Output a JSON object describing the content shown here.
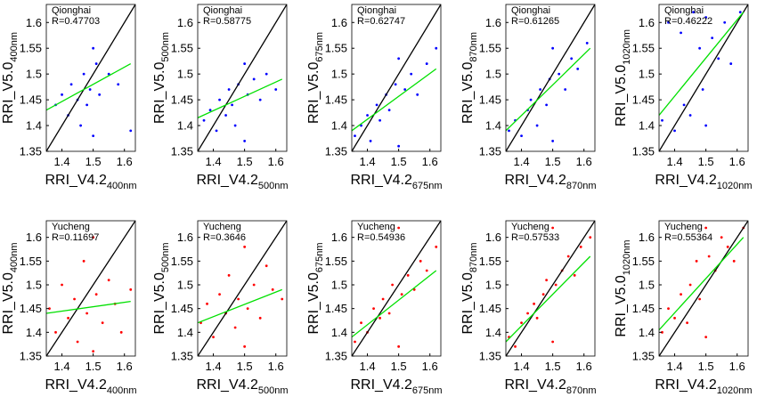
{
  "chart_data": [
    {
      "type": "scatter",
      "station": "Qionghai",
      "r_label": "R=0.47703",
      "xlabel": "RRI_V4.2",
      "xlabel_sub": "400nm",
      "ylabel": "RRI_V5.0",
      "ylabel_sub": "400nm",
      "xlim": [
        1.35,
        1.635
      ],
      "ylim": [
        1.35,
        1.635
      ],
      "xticks": [
        1.4,
        1.5,
        1.6
      ],
      "yticks": [
        1.35,
        1.4,
        1.45,
        1.5,
        1.55,
        1.6
      ],
      "series": [
        {
          "type": "scatter",
          "color": "#0000ff",
          "x": [
            1.38,
            1.4,
            1.42,
            1.43,
            1.45,
            1.46,
            1.47,
            1.48,
            1.49,
            1.5,
            1.5,
            1.51,
            1.52,
            1.55,
            1.58,
            1.62
          ],
          "values": [
            1.44,
            1.46,
            1.42,
            1.48,
            1.45,
            1.4,
            1.5,
            1.44,
            1.47,
            1.55,
            1.38,
            1.52,
            1.46,
            1.5,
            1.48,
            1.39
          ]
        },
        {
          "type": "line",
          "color": "#000000",
          "x": [
            1.35,
            1.635
          ],
          "values": [
            1.35,
            1.635
          ]
        },
        {
          "type": "line",
          "color": "#00e000",
          "x": [
            1.35,
            1.62
          ],
          "values": [
            1.43,
            1.52
          ]
        }
      ]
    },
    {
      "type": "scatter",
      "station": "Qionghai",
      "r_label": "R=0.58775",
      "xlabel": "RRI_V4.2",
      "xlabel_sub": "500nm",
      "ylabel": "RRI_V5.0",
      "ylabel_sub": "500nm",
      "xlim": [
        1.35,
        1.635
      ],
      "ylim": [
        1.35,
        1.635
      ],
      "xticks": [
        1.4,
        1.5,
        1.6
      ],
      "yticks": [
        1.35,
        1.4,
        1.45,
        1.5,
        1.55,
        1.6
      ],
      "series": [
        {
          "type": "scatter",
          "color": "#0000ff",
          "x": [
            1.37,
            1.39,
            1.41,
            1.42,
            1.44,
            1.45,
            1.46,
            1.47,
            1.48,
            1.5,
            1.5,
            1.51,
            1.53,
            1.55,
            1.57,
            1.6
          ],
          "values": [
            1.41,
            1.43,
            1.39,
            1.45,
            1.42,
            1.47,
            1.44,
            1.4,
            1.48,
            1.52,
            1.37,
            1.46,
            1.49,
            1.45,
            1.5,
            1.47
          ]
        },
        {
          "type": "line",
          "color": "#000000",
          "x": [
            1.35,
            1.635
          ],
          "values": [
            1.35,
            1.635
          ]
        },
        {
          "type": "line",
          "color": "#00e000",
          "x": [
            1.35,
            1.62
          ],
          "values": [
            1.415,
            1.49
          ]
        }
      ]
    },
    {
      "type": "scatter",
      "station": "Qionghai",
      "r_label": "R=0.62747",
      "xlabel": "RRI_V4.2",
      "xlabel_sub": "675nm",
      "ylabel": "RRI_V5.0",
      "ylabel_sub": "675nm",
      "xlim": [
        1.35,
        1.635
      ],
      "ylim": [
        1.35,
        1.635
      ],
      "xticks": [
        1.4,
        1.5,
        1.6
      ],
      "yticks": [
        1.35,
        1.4,
        1.45,
        1.5,
        1.55,
        1.6
      ],
      "series": [
        {
          "type": "scatter",
          "color": "#0000ff",
          "x": [
            1.36,
            1.38,
            1.4,
            1.41,
            1.43,
            1.44,
            1.46,
            1.47,
            1.49,
            1.5,
            1.5,
            1.52,
            1.54,
            1.56,
            1.59,
            1.62
          ],
          "values": [
            1.38,
            1.4,
            1.42,
            1.37,
            1.44,
            1.41,
            1.46,
            1.43,
            1.48,
            1.53,
            1.36,
            1.47,
            1.5,
            1.46,
            1.52,
            1.55
          ]
        },
        {
          "type": "line",
          "color": "#000000",
          "x": [
            1.35,
            1.635
          ],
          "values": [
            1.35,
            1.635
          ]
        },
        {
          "type": "line",
          "color": "#00e000",
          "x": [
            1.35,
            1.62
          ],
          "values": [
            1.39,
            1.51
          ]
        }
      ]
    },
    {
      "type": "scatter",
      "station": "Qionghai",
      "r_label": "R=0.61265",
      "xlabel": "RRI_V4.2",
      "xlabel_sub": "870nm",
      "ylabel": "RRI_V5.0",
      "ylabel_sub": "870nm",
      "xlim": [
        1.35,
        1.635
      ],
      "ylim": [
        1.35,
        1.635
      ],
      "xticks": [
        1.4,
        1.5,
        1.6
      ],
      "yticks": [
        1.35,
        1.4,
        1.45,
        1.5,
        1.55,
        1.6
      ],
      "series": [
        {
          "type": "scatter",
          "color": "#0000ff",
          "x": [
            1.36,
            1.38,
            1.4,
            1.42,
            1.43,
            1.45,
            1.46,
            1.48,
            1.49,
            1.5,
            1.5,
            1.52,
            1.54,
            1.56,
            1.58,
            1.61
          ],
          "values": [
            1.39,
            1.41,
            1.38,
            1.43,
            1.45,
            1.4,
            1.47,
            1.44,
            1.49,
            1.55,
            1.37,
            1.5,
            1.47,
            1.53,
            1.51,
            1.56
          ]
        },
        {
          "type": "line",
          "color": "#000000",
          "x": [
            1.35,
            1.635
          ],
          "values": [
            1.35,
            1.635
          ]
        },
        {
          "type": "line",
          "color": "#00e000",
          "x": [
            1.35,
            1.62
          ],
          "values": [
            1.39,
            1.55
          ]
        }
      ]
    },
    {
      "type": "scatter",
      "station": "Qionghai",
      "r_label": "R=0.46222",
      "xlabel": "RRI_V4.2",
      "xlabel_sub": "1020nm",
      "ylabel": "RRI_V5.0",
      "ylabel_sub": "1020nm",
      "xlim": [
        1.35,
        1.635
      ],
      "ylim": [
        1.35,
        1.635
      ],
      "xticks": [
        1.4,
        1.5,
        1.6
      ],
      "yticks": [
        1.35,
        1.4,
        1.45,
        1.5,
        1.55,
        1.6
      ],
      "series": [
        {
          "type": "scatter",
          "color": "#0000ff",
          "x": [
            1.36,
            1.38,
            1.4,
            1.42,
            1.43,
            1.45,
            1.46,
            1.48,
            1.49,
            1.5,
            1.5,
            1.52,
            1.54,
            1.56,
            1.58,
            1.61
          ],
          "values": [
            1.41,
            1.6,
            1.39,
            1.58,
            1.44,
            1.42,
            1.62,
            1.55,
            1.47,
            1.61,
            1.4,
            1.57,
            1.53,
            1.6,
            1.52,
            1.62
          ]
        },
        {
          "type": "line",
          "color": "#000000",
          "x": [
            1.35,
            1.635
          ],
          "values": [
            1.35,
            1.635
          ]
        },
        {
          "type": "line",
          "color": "#00e000",
          "x": [
            1.35,
            1.62
          ],
          "values": [
            1.42,
            1.62
          ]
        }
      ]
    },
    {
      "type": "scatter",
      "station": "Yucheng",
      "r_label": "R=0.11697",
      "xlabel": "RRI_V4.2",
      "xlabel_sub": "400nm",
      "ylabel": "RRI_V5.0",
      "ylabel_sub": "400nm",
      "xlim": [
        1.35,
        1.635
      ],
      "ylim": [
        1.35,
        1.635
      ],
      "xticks": [
        1.4,
        1.5,
        1.6
      ],
      "yticks": [
        1.35,
        1.4,
        1.45,
        1.5,
        1.55,
        1.6
      ],
      "series": [
        {
          "type": "scatter",
          "color": "#ff0000",
          "x": [
            1.36,
            1.38,
            1.4,
            1.42,
            1.44,
            1.45,
            1.47,
            1.48,
            1.5,
            1.5,
            1.51,
            1.53,
            1.55,
            1.57,
            1.59,
            1.62
          ],
          "values": [
            1.45,
            1.4,
            1.5,
            1.43,
            1.47,
            1.38,
            1.55,
            1.44,
            1.6,
            1.36,
            1.48,
            1.42,
            1.51,
            1.46,
            1.4,
            1.49
          ]
        },
        {
          "type": "line",
          "color": "#000000",
          "x": [
            1.35,
            1.635
          ],
          "values": [
            1.35,
            1.635
          ]
        },
        {
          "type": "line",
          "color": "#00e000",
          "x": [
            1.35,
            1.62
          ],
          "values": [
            1.44,
            1.465
          ]
        }
      ]
    },
    {
      "type": "scatter",
      "station": "Yucheng",
      "r_label": "R=0.3646",
      "xlabel": "RRI_V4.2",
      "xlabel_sub": "500nm",
      "ylabel": "RRI_V5.0",
      "ylabel_sub": "500nm",
      "xlim": [
        1.35,
        1.635
      ],
      "ylim": [
        1.35,
        1.635
      ],
      "xticks": [
        1.4,
        1.5,
        1.6
      ],
      "yticks": [
        1.35,
        1.4,
        1.45,
        1.5,
        1.55,
        1.6
      ],
      "series": [
        {
          "type": "scatter",
          "color": "#ff0000",
          "x": [
            1.36,
            1.38,
            1.4,
            1.42,
            1.44,
            1.45,
            1.47,
            1.48,
            1.5,
            1.5,
            1.51,
            1.53,
            1.55,
            1.57,
            1.59,
            1.62
          ],
          "values": [
            1.42,
            1.46,
            1.39,
            1.48,
            1.44,
            1.52,
            1.41,
            1.47,
            1.58,
            1.37,
            1.45,
            1.5,
            1.43,
            1.54,
            1.49,
            1.47
          ]
        },
        {
          "type": "line",
          "color": "#000000",
          "x": [
            1.35,
            1.635
          ],
          "values": [
            1.35,
            1.635
          ]
        },
        {
          "type": "line",
          "color": "#00e000",
          "x": [
            1.35,
            1.62
          ],
          "values": [
            1.42,
            1.49
          ]
        }
      ]
    },
    {
      "type": "scatter",
      "station": "Yucheng",
      "r_label": "R=0.54936",
      "xlabel": "RRI_V4.2",
      "xlabel_sub": "675nm",
      "ylabel": "RRI_V5.0",
      "ylabel_sub": "675nm",
      "xlim": [
        1.35,
        1.635
      ],
      "ylim": [
        1.35,
        1.635
      ],
      "xticks": [
        1.4,
        1.5,
        1.6
      ],
      "yticks": [
        1.35,
        1.4,
        1.45,
        1.5,
        1.55,
        1.6
      ],
      "series": [
        {
          "type": "scatter",
          "color": "#ff0000",
          "x": [
            1.36,
            1.38,
            1.4,
            1.42,
            1.44,
            1.45,
            1.47,
            1.48,
            1.5,
            1.5,
            1.51,
            1.53,
            1.55,
            1.57,
            1.59,
            1.62
          ],
          "values": [
            1.38,
            1.42,
            1.4,
            1.45,
            1.43,
            1.47,
            1.44,
            1.5,
            1.62,
            1.37,
            1.48,
            1.52,
            1.49,
            1.55,
            1.53,
            1.58
          ]
        },
        {
          "type": "line",
          "color": "#000000",
          "x": [
            1.35,
            1.635
          ],
          "values": [
            1.35,
            1.635
          ]
        },
        {
          "type": "line",
          "color": "#00e000",
          "x": [
            1.35,
            1.62
          ],
          "values": [
            1.39,
            1.53
          ]
        }
      ]
    },
    {
      "type": "scatter",
      "station": "Yucheng",
      "r_label": "R=0.57533",
      "xlabel": "RRI_V4.2",
      "xlabel_sub": "870nm",
      "ylabel": "RRI_V5.0",
      "ylabel_sub": "870nm",
      "xlim": [
        1.35,
        1.635
      ],
      "ylim": [
        1.35,
        1.635
      ],
      "xticks": [
        1.4,
        1.5,
        1.6
      ],
      "yticks": [
        1.35,
        1.4,
        1.45,
        1.5,
        1.55,
        1.6
      ],
      "series": [
        {
          "type": "scatter",
          "color": "#ff0000",
          "x": [
            1.36,
            1.38,
            1.4,
            1.42,
            1.44,
            1.45,
            1.47,
            1.48,
            1.5,
            1.5,
            1.51,
            1.53,
            1.55,
            1.57,
            1.59,
            1.62
          ],
          "values": [
            1.39,
            1.37,
            1.42,
            1.44,
            1.46,
            1.43,
            1.48,
            1.51,
            1.62,
            1.38,
            1.5,
            1.53,
            1.56,
            1.52,
            1.58,
            1.6
          ]
        },
        {
          "type": "line",
          "color": "#000000",
          "x": [
            1.35,
            1.635
          ],
          "values": [
            1.35,
            1.635
          ]
        },
        {
          "type": "line",
          "color": "#00e000",
          "x": [
            1.35,
            1.62
          ],
          "values": [
            1.38,
            1.56
          ]
        }
      ]
    },
    {
      "type": "scatter",
      "station": "Yucheng",
      "r_label": "R=0.55364",
      "xlabel": "RRI_V4.2",
      "xlabel_sub": "1020nm",
      "ylabel": "RRI_V5.0",
      "ylabel_sub": "1020nm",
      "xlim": [
        1.35,
        1.635
      ],
      "ylim": [
        1.35,
        1.635
      ],
      "xticks": [
        1.4,
        1.5,
        1.6
      ],
      "yticks": [
        1.35,
        1.4,
        1.45,
        1.5,
        1.55,
        1.6
      ],
      "series": [
        {
          "type": "scatter",
          "color": "#ff0000",
          "x": [
            1.36,
            1.38,
            1.4,
            1.42,
            1.44,
            1.45,
            1.47,
            1.48,
            1.5,
            1.5,
            1.51,
            1.53,
            1.55,
            1.57,
            1.59,
            1.62
          ],
          "values": [
            1.4,
            1.45,
            1.43,
            1.48,
            1.42,
            1.5,
            1.55,
            1.47,
            1.62,
            1.39,
            1.56,
            1.53,
            1.6,
            1.58,
            1.55,
            1.62
          ]
        },
        {
          "type": "line",
          "color": "#000000",
          "x": [
            1.35,
            1.635
          ],
          "values": [
            1.35,
            1.635
          ]
        },
        {
          "type": "line",
          "color": "#00e000",
          "x": [
            1.35,
            1.62
          ],
          "values": [
            1.405,
            1.6
          ]
        }
      ]
    }
  ]
}
